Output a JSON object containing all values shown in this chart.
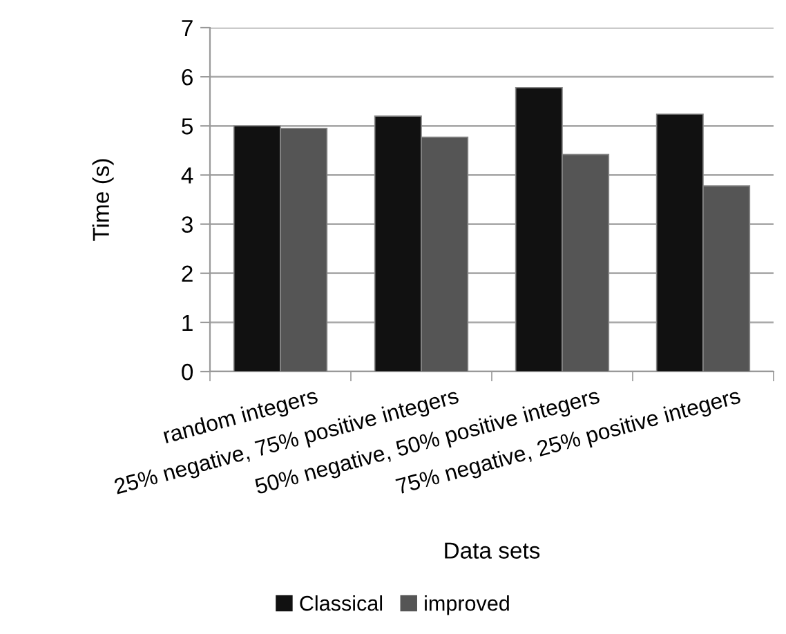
{
  "chart_data": {
    "type": "bar",
    "xlabel": "Data sets",
    "ylabel": "Time (s)",
    "categories": [
      "random integers",
      "25% negative, 75% positive integers",
      "50% negative, 50% positive integers",
      "75% negative, 25% positive integers"
    ],
    "series": [
      {
        "name": "Classical",
        "color": "#111111",
        "values": [
          5.0,
          5.2,
          5.78,
          5.24
        ]
      },
      {
        "name": "improved",
        "color": "#555555",
        "values": [
          4.95,
          4.77,
          4.42,
          3.78
        ]
      }
    ],
    "ylim": [
      0,
      7
    ],
    "yticks": [
      0,
      1,
      2,
      3,
      4,
      5,
      6,
      7
    ],
    "grid": "y",
    "legend": "bottom"
  }
}
